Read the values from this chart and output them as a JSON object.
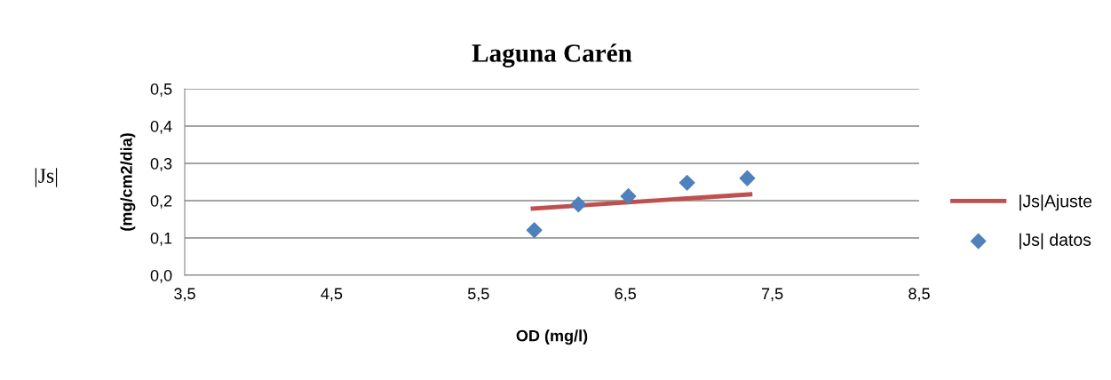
{
  "chart_data": {
    "type": "scatter",
    "title": "Laguna Carén",
    "xlabel": "OD (mg/l)",
    "ylabel": "(mg/cm2/dia)",
    "annotations": [
      "|Js|"
    ],
    "xlim": [
      3.5,
      8.5
    ],
    "xticks": [
      {
        "value": 3.5,
        "label": "3,5"
      },
      {
        "value": 4.5,
        "label": "4,5"
      },
      {
        "value": 5.5,
        "label": "5,5"
      },
      {
        "value": 6.5,
        "label": "6,5"
      },
      {
        "value": 7.5,
        "label": "7,5"
      },
      {
        "value": 8.5,
        "label": "8,5"
      }
    ],
    "ylim": [
      0,
      0.5
    ],
    "yticks": [
      {
        "value": 0,
        "label": "0,0"
      },
      {
        "value": 0.1,
        "label": "0,1"
      },
      {
        "value": 0.2,
        "label": "0,2"
      },
      {
        "value": 0.3,
        "label": "0,3"
      },
      {
        "value": 0.4,
        "label": "0,4"
      },
      {
        "value": 0.5,
        "label": "0,5"
      }
    ],
    "grid": "y",
    "legend": "right",
    "series": [
      {
        "name": "|Js|Ajuste",
        "type": "line",
        "color": "#c0504d",
        "x": [
          5.87,
          7.35
        ],
        "values": [
          0.179,
          0.217
        ]
      },
      {
        "name": "|Js| datos",
        "marker": "diamond",
        "color": "#4f81bd",
        "x": [
          5.88,
          6.18,
          6.52,
          6.92,
          7.33
        ],
        "values": [
          0.121,
          0.19,
          0.212,
          0.248,
          0.26
        ]
      }
    ]
  }
}
